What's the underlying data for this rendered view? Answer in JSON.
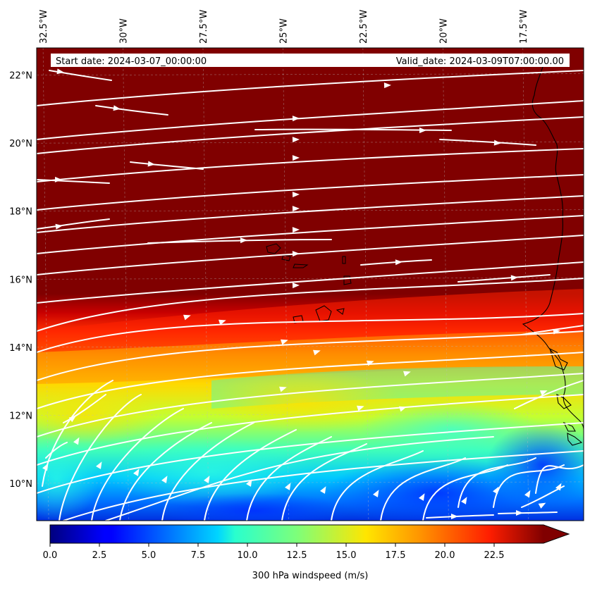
{
  "header": {
    "start_date": "Start date: 2024-03-07_00:00:00",
    "valid_date": "Valid_date: 2024-03-09T07:00:00.00"
  },
  "map": {
    "lon_range": [
      -32.7,
      -15.6
    ],
    "lat_range": [
      8.9,
      22.8
    ],
    "lon_ticks": [
      {
        "value": -32.5,
        "label": "32.5°W"
      },
      {
        "value": -30.0,
        "label": "30°W"
      },
      {
        "value": -27.5,
        "label": "27.5°W"
      },
      {
        "value": -25.0,
        "label": "25°W"
      },
      {
        "value": -22.5,
        "label": "22.5°W"
      },
      {
        "value": -20.0,
        "label": "20°W"
      },
      {
        "value": -17.5,
        "label": "17.5°W"
      }
    ],
    "lat_ticks": [
      {
        "value": 10,
        "label": "10°N"
      },
      {
        "value": 12,
        "label": "12°N"
      },
      {
        "value": 14,
        "label": "14°N"
      },
      {
        "value": 16,
        "label": "16°N"
      },
      {
        "value": 18,
        "label": "18°N"
      },
      {
        "value": 20,
        "label": "20°N"
      },
      {
        "value": 22,
        "label": "22°N"
      }
    ],
    "gridlines": true,
    "overlay": "streamlines",
    "field_high_color": "#800000"
  },
  "colorbar": {
    "label": "300 hPa windspeed (m/s)",
    "colormap": "jet",
    "range": [
      0,
      25
    ],
    "extend": "max",
    "ticks": [
      "0.0",
      "2.5",
      "5.0",
      "7.5",
      "10.0",
      "12.5",
      "15.0",
      "17.5",
      "20.0",
      "22.5"
    ]
  }
}
